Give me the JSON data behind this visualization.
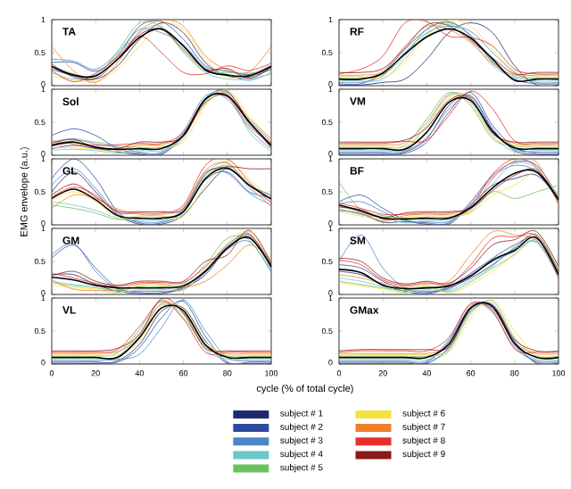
{
  "chart_data": [
    {
      "type": "line",
      "title": "TA",
      "x": [
        0,
        10,
        20,
        30,
        40,
        50,
        60,
        70,
        80,
        90,
        100
      ],
      "xlim": [
        0,
        100
      ],
      "xticks": [
        0,
        20,
        40,
        60,
        80,
        100
      ],
      "ylim": [
        0,
        1
      ],
      "yticks": [
        0,
        0.5,
        1
      ],
      "tick_labels": "y",
      "series": [
        {
          "color": "#1f2a6e",
          "values": [
            0.25,
            0.15,
            0.1,
            0.3,
            0.7,
            0.95,
            0.8,
            0.35,
            0.15,
            0.13,
            0.25
          ]
        },
        {
          "color": "#2e4a9e",
          "values": [
            0.35,
            0.35,
            0.22,
            0.45,
            0.9,
            0.97,
            0.7,
            0.3,
            0.22,
            0.17,
            0.31
          ]
        },
        {
          "color": "#4a86c8",
          "values": [
            0.4,
            0.37,
            0.25,
            0.5,
            0.85,
            0.8,
            0.62,
            0.27,
            0.17,
            0.08,
            0.2
          ]
        },
        {
          "color": "#6cc5c8",
          "values": [
            0.2,
            0.1,
            0.17,
            0.47,
            0.8,
            0.9,
            0.5,
            0.2,
            0.1,
            0.1,
            0.18
          ]
        },
        {
          "color": "#6cc060",
          "values": [
            0.3,
            0.18,
            0.13,
            0.52,
            0.95,
            0.88,
            0.52,
            0.22,
            0.2,
            0.19,
            0.23
          ]
        },
        {
          "color": "#f5e23a",
          "values": [
            0.15,
            0.08,
            0.07,
            0.25,
            0.6,
            0.93,
            0.85,
            0.4,
            0.13,
            0.15,
            0.16
          ]
        },
        {
          "color": "#f07f2a",
          "values": [
            0.6,
            0.22,
            0.05,
            0.35,
            0.82,
            0.99,
            0.9,
            0.45,
            0.24,
            0.21,
            0.6
          ]
        },
        {
          "color": "#e8302a",
          "values": [
            0.23,
            0.06,
            0.19,
            0.43,
            0.75,
            0.5,
            0.2,
            0.18,
            0.3,
            0.23,
            0.34
          ]
        },
        {
          "color": "#8b1a1a",
          "values": [
            0.33,
            0.13,
            0.11,
            0.4,
            0.77,
            0.85,
            0.55,
            0.25,
            0.26,
            0.11,
            0.28
          ]
        },
        {
          "color": "#000000",
          "values": [
            0.29,
            0.16,
            0.15,
            0.4,
            0.73,
            0.86,
            0.6,
            0.24,
            0.16,
            0.15,
            0.29
          ]
        }
      ]
    },
    {
      "type": "line",
      "title": "RF",
      "x": [
        0,
        10,
        20,
        30,
        40,
        50,
        60,
        70,
        80,
        90,
        100
      ],
      "xlim": [
        0,
        100
      ],
      "xticks": [
        0,
        20,
        40,
        60,
        80,
        100
      ],
      "ylim": [
        0,
        1
      ],
      "yticks": [
        0,
        0.5,
        1
      ],
      "tick_labels": "y",
      "series": [
        {
          "color": "#1f2a6e",
          "values": [
            0.01,
            0.01,
            0.05,
            0.1,
            0.4,
            0.8,
            0.95,
            0.8,
            0.3,
            0.01,
            0.01
          ]
        },
        {
          "color": "#2e4a9e",
          "values": [
            0.03,
            0.03,
            0.2,
            0.55,
            0.85,
            0.97,
            0.75,
            0.35,
            0.1,
            0.03,
            0.03
          ]
        },
        {
          "color": "#4a86c8",
          "values": [
            0.05,
            0.05,
            0.15,
            0.5,
            0.8,
            0.9,
            0.82,
            0.5,
            0.2,
            0.05,
            0.05
          ]
        },
        {
          "color": "#6cc5c8",
          "values": [
            0.07,
            0.07,
            0.1,
            0.4,
            0.78,
            0.93,
            0.7,
            0.3,
            0.12,
            0.07,
            0.07
          ]
        },
        {
          "color": "#6cc060",
          "values": [
            0.12,
            0.12,
            0.17,
            0.45,
            0.86,
            0.95,
            0.77,
            0.37,
            0.14,
            0.12,
            0.12
          ]
        },
        {
          "color": "#f5e23a",
          "values": [
            0.14,
            0.14,
            0.12,
            0.35,
            0.75,
            0.99,
            0.9,
            0.55,
            0.22,
            0.14,
            0.14
          ]
        },
        {
          "color": "#f07f2a",
          "values": [
            0.16,
            0.16,
            0.22,
            0.6,
            0.9,
            0.85,
            0.65,
            0.33,
            0.16,
            0.16,
            0.16
          ]
        },
        {
          "color": "#e8302a",
          "values": [
            0.18,
            0.25,
            0.45,
            0.95,
            0.97,
            0.75,
            0.73,
            0.6,
            0.25,
            0.18,
            0.18
          ]
        },
        {
          "color": "#8b1a1a",
          "values": [
            0.2,
            0.2,
            0.26,
            0.57,
            0.92,
            0.91,
            0.68,
            0.42,
            0.18,
            0.2,
            0.2
          ]
        },
        {
          "color": "#000000",
          "values": [
            0.1,
            0.1,
            0.19,
            0.48,
            0.74,
            0.86,
            0.72,
            0.4,
            0.08,
            0.1,
            0.1
          ]
        }
      ]
    },
    {
      "type": "line",
      "title": "Sol",
      "x": [
        0,
        10,
        20,
        30,
        40,
        50,
        60,
        70,
        80,
        90,
        100
      ],
      "xlim": [
        0,
        100
      ],
      "xticks": [
        0,
        20,
        40,
        60,
        80,
        100
      ],
      "ylim": [
        0,
        1
      ],
      "yticks": [
        0,
        0.5,
        1
      ],
      "tick_labels": "y",
      "series": [
        {
          "color": "#1f2a6e",
          "values": [
            0.1,
            0.15,
            0.1,
            0.05,
            0.01,
            0.01,
            0.3,
            0.85,
            0.97,
            0.5,
            0.13
          ]
        },
        {
          "color": "#2e4a9e",
          "values": [
            0.3,
            0.4,
            0.3,
            0.1,
            0.03,
            0.03,
            0.33,
            0.8,
            0.9,
            0.53,
            0.2
          ]
        },
        {
          "color": "#4a86c8",
          "values": [
            0.2,
            0.25,
            0.17,
            0.12,
            0.05,
            0.05,
            0.37,
            0.9,
            0.85,
            0.4,
            0.09
          ]
        },
        {
          "color": "#6cc5c8",
          "values": [
            0.08,
            0.09,
            0.07,
            0.03,
            0.07,
            0.07,
            0.25,
            0.87,
            0.92,
            0.35,
            0.06
          ]
        },
        {
          "color": "#6cc060",
          "values": [
            0.16,
            0.22,
            0.2,
            0.14,
            0.12,
            0.12,
            0.28,
            0.82,
            0.95,
            0.47,
            0.16
          ]
        },
        {
          "color": "#f5e23a",
          "values": [
            0.12,
            0.11,
            0.09,
            0.06,
            0.14,
            0.14,
            0.2,
            0.75,
            0.99,
            0.6,
            0.22
          ]
        },
        {
          "color": "#f07f2a",
          "values": [
            0.22,
            0.17,
            0.13,
            0.08,
            0.16,
            0.16,
            0.31,
            0.78,
            0.94,
            0.56,
            0.25
          ]
        },
        {
          "color": "#e8302a",
          "values": [
            0.14,
            0.19,
            0.15,
            0.16,
            0.18,
            0.18,
            0.35,
            0.86,
            0.88,
            0.44,
            0.18
          ]
        },
        {
          "color": "#8b1a1a",
          "values": [
            0.18,
            0.24,
            0.11,
            0.1,
            0.2,
            0.2,
            0.29,
            0.84,
            0.91,
            0.51,
            0.11
          ]
        },
        {
          "color": "#000000",
          "values": [
            0.15,
            0.2,
            0.12,
            0.09,
            0.1,
            0.1,
            0.3,
            0.85,
            0.9,
            0.5,
            0.15
          ]
        }
      ]
    },
    {
      "type": "line",
      "title": "VM",
      "x": [
        0,
        10,
        20,
        30,
        40,
        50,
        60,
        70,
        80,
        90,
        100
      ],
      "xlim": [
        0,
        100
      ],
      "xticks": [
        0,
        20,
        40,
        60,
        80,
        100
      ],
      "ylim": [
        0,
        1
      ],
      "yticks": [
        0,
        0.5,
        1
      ],
      "tick_labels": "y",
      "series": [
        {
          "color": "#1f2a6e",
          "values": [
            0.01,
            0.01,
            0.01,
            0.05,
            0.25,
            0.75,
            0.9,
            0.4,
            0.07,
            0.01,
            0.01
          ]
        },
        {
          "color": "#2e4a9e",
          "values": [
            0.03,
            0.03,
            0.03,
            0.03,
            0.2,
            0.65,
            0.95,
            0.45,
            0.12,
            0.03,
            0.03
          ]
        },
        {
          "color": "#4a86c8",
          "values": [
            0.05,
            0.05,
            0.05,
            0.07,
            0.27,
            0.7,
            0.88,
            0.38,
            0.09,
            0.05,
            0.05
          ]
        },
        {
          "color": "#6cc5c8",
          "values": [
            0.07,
            0.07,
            0.07,
            0.11,
            0.45,
            0.9,
            0.8,
            0.3,
            0.05,
            0.07,
            0.07
          ]
        },
        {
          "color": "#6cc060",
          "values": [
            0.12,
            0.12,
            0.12,
            0.15,
            0.55,
            0.95,
            0.75,
            0.25,
            0.14,
            0.12,
            0.12
          ]
        },
        {
          "color": "#f5e23a",
          "values": [
            0.14,
            0.14,
            0.14,
            0.13,
            0.4,
            0.87,
            0.78,
            0.28,
            0.16,
            0.14,
            0.14
          ]
        },
        {
          "color": "#f07f2a",
          "values": [
            0.16,
            0.16,
            0.16,
            0.19,
            0.5,
            0.92,
            0.85,
            0.35,
            0.18,
            0.16,
            0.16
          ]
        },
        {
          "color": "#e8302a",
          "values": [
            0.18,
            0.18,
            0.18,
            0.21,
            0.23,
            0.6,
            0.97,
            0.7,
            0.22,
            0.18,
            0.18
          ]
        },
        {
          "color": "#8b1a1a",
          "values": [
            0.2,
            0.2,
            0.2,
            0.23,
            0.42,
            0.83,
            0.86,
            0.33,
            0.2,
            0.2,
            0.2
          ]
        },
        {
          "color": "#000000",
          "values": [
            0.1,
            0.1,
            0.1,
            0.09,
            0.35,
            0.8,
            0.83,
            0.36,
            0.11,
            0.1,
            0.1
          ]
        }
      ]
    },
    {
      "type": "line",
      "title": "GL",
      "ylabel": "EMG envelope (a.u.)",
      "x": [
        0,
        10,
        20,
        30,
        40,
        50,
        60,
        70,
        80,
        90,
        100
      ],
      "xlim": [
        0,
        100
      ],
      "xticks": [
        0,
        20,
        40,
        60,
        80,
        100
      ],
      "ylim": [
        0,
        1
      ],
      "yticks": [
        0,
        0.5,
        1
      ],
      "tick_labels": "y",
      "series": [
        {
          "color": "#1f2a6e",
          "values": [
            0.5,
            0.8,
            0.5,
            0.15,
            0.01,
            0.01,
            0.15,
            0.55,
            0.85,
            0.6,
            0.45
          ]
        },
        {
          "color": "#2e4a9e",
          "values": [
            0.7,
            1.0,
            0.7,
            0.2,
            0.03,
            0.03,
            0.2,
            0.68,
            0.8,
            0.5,
            0.42
          ]
        },
        {
          "color": "#4a86c8",
          "values": [
            0.6,
            0.85,
            0.55,
            0.17,
            0.05,
            0.05,
            0.25,
            0.8,
            0.78,
            0.48,
            0.3
          ]
        },
        {
          "color": "#6cc5c8",
          "values": [
            0.35,
            0.3,
            0.22,
            0.1,
            0.07,
            0.07,
            0.22,
            0.75,
            0.95,
            0.55,
            0.35
          ]
        },
        {
          "color": "#6cc060",
          "values": [
            0.3,
            0.25,
            0.18,
            0.08,
            0.12,
            0.12,
            0.18,
            0.72,
            0.9,
            0.62,
            0.4
          ]
        },
        {
          "color": "#f5e23a",
          "values": [
            0.37,
            0.5,
            0.35,
            0.11,
            0.14,
            0.14,
            0.13,
            0.6,
            0.97,
            0.7,
            0.38
          ]
        },
        {
          "color": "#f07f2a",
          "values": [
            0.25,
            0.45,
            0.4,
            0.24,
            0.16,
            0.16,
            0.27,
            0.82,
            0.93,
            0.58,
            0.28
          ]
        },
        {
          "color": "#e8302a",
          "values": [
            0.42,
            0.57,
            0.45,
            0.19,
            0.18,
            0.18,
            0.3,
            0.9,
            1.0,
            0.65,
            0.33
          ]
        },
        {
          "color": "#8b1a1a",
          "values": [
            0.45,
            0.62,
            0.42,
            0.21,
            0.2,
            0.2,
            0.24,
            0.77,
            0.88,
            0.85,
            0.85
          ]
        },
        {
          "color": "#000000",
          "values": [
            0.4,
            0.54,
            0.38,
            0.14,
            0.1,
            0.1,
            0.2,
            0.7,
            0.86,
            0.6,
            0.39
          ]
        }
      ]
    },
    {
      "type": "line",
      "title": "BF",
      "x": [
        0,
        10,
        20,
        30,
        40,
        50,
        60,
        70,
        80,
        90,
        100
      ],
      "xlim": [
        0,
        100
      ],
      "xticks": [
        0,
        20,
        40,
        60,
        80,
        100
      ],
      "ylim": [
        0,
        1
      ],
      "yticks": [
        0,
        0.5,
        1
      ],
      "tick_labels": "y",
      "series": [
        {
          "color": "#1f2a6e",
          "values": [
            0.22,
            0.17,
            0.04,
            0.05,
            0.01,
            0.01,
            0.3,
            0.6,
            0.7,
            0.75,
            0.4
          ]
        },
        {
          "color": "#2e4a9e",
          "values": [
            0.35,
            0.45,
            0.25,
            0.08,
            0.03,
            0.03,
            0.35,
            0.75,
            0.95,
            0.9,
            0.42
          ]
        },
        {
          "color": "#4a86c8",
          "values": [
            0.32,
            0.35,
            0.2,
            0.06,
            0.05,
            0.05,
            0.32,
            0.72,
            0.9,
            0.8,
            0.35
          ]
        },
        {
          "color": "#6cc5c8",
          "values": [
            0.25,
            0.15,
            0.12,
            0.03,
            0.07,
            0.07,
            0.27,
            0.62,
            0.93,
            0.85,
            0.37
          ]
        },
        {
          "color": "#6cc060",
          "values": [
            0.65,
            0.22,
            0.14,
            0.1,
            0.12,
            0.12,
            0.2,
            0.5,
            0.4,
            0.5,
            0.6
          ]
        },
        {
          "color": "#f5e23a",
          "values": [
            0.2,
            0.13,
            0.08,
            0.12,
            0.14,
            0.14,
            0.18,
            0.45,
            0.6,
            0.78,
            0.45
          ]
        },
        {
          "color": "#f07f2a",
          "values": [
            0.28,
            0.19,
            0.06,
            0.14,
            0.16,
            0.16,
            0.23,
            0.7,
            0.97,
            0.95,
            0.3
          ]
        },
        {
          "color": "#e8302a",
          "values": [
            0.33,
            0.25,
            0.16,
            0.16,
            0.18,
            0.18,
            0.28,
            0.77,
            1.0,
            0.87,
            0.33
          ]
        },
        {
          "color": "#8b1a1a",
          "values": [
            0.27,
            0.23,
            0.11,
            0.18,
            0.2,
            0.2,
            0.25,
            0.52,
            0.75,
            0.83,
            0.39
          ]
        },
        {
          "color": "#000000",
          "values": [
            0.3,
            0.21,
            0.1,
            0.09,
            0.1,
            0.1,
            0.26,
            0.56,
            0.78,
            0.8,
            0.38
          ]
        }
      ]
    },
    {
      "type": "line",
      "title": "GM",
      "x": [
        0,
        10,
        20,
        30,
        40,
        50,
        60,
        70,
        80,
        90,
        100
      ],
      "xlim": [
        0,
        100
      ],
      "xticks": [
        0,
        20,
        40,
        60,
        80,
        100
      ],
      "ylim": [
        0,
        1
      ],
      "yticks": [
        0,
        0.5,
        1
      ],
      "tick_labels": "y",
      "series": [
        {
          "color": "#1f2a6e",
          "values": [
            0.3,
            0.3,
            0.15,
            0.05,
            0.01,
            0.01,
            0.1,
            0.3,
            0.7,
            0.9,
            0.45
          ]
        },
        {
          "color": "#2e4a9e",
          "values": [
            0.55,
            0.75,
            0.4,
            0.1,
            0.03,
            0.03,
            0.12,
            0.37,
            0.72,
            0.85,
            0.42
          ]
        },
        {
          "color": "#4a86c8",
          "values": [
            0.6,
            0.77,
            0.35,
            0.08,
            0.05,
            0.05,
            0.08,
            0.33,
            0.68,
            0.8,
            0.35
          ]
        },
        {
          "color": "#6cc5c8",
          "values": [
            0.2,
            0.15,
            0.12,
            0.03,
            0.07,
            0.07,
            0.14,
            0.35,
            0.76,
            0.87,
            0.38
          ]
        },
        {
          "color": "#6cc060",
          "values": [
            0.18,
            0.13,
            0.1,
            0.06,
            0.12,
            0.12,
            0.16,
            0.45,
            0.85,
            0.82,
            0.33
          ]
        },
        {
          "color": "#f5e23a",
          "values": [
            0.15,
            0.1,
            0.08,
            0.02,
            0.14,
            0.14,
            0.06,
            0.4,
            0.78,
            0.95,
            0.5
          ]
        },
        {
          "color": "#f07f2a",
          "values": [
            0.22,
            0.08,
            0.06,
            0.07,
            0.16,
            0.16,
            0.11,
            0.2,
            0.45,
            0.75,
            0.52
          ]
        },
        {
          "color": "#e8302a",
          "values": [
            0.32,
            0.25,
            0.17,
            0.12,
            0.18,
            0.18,
            0.18,
            0.42,
            0.74,
            0.92,
            0.4
          ]
        },
        {
          "color": "#8b1a1a",
          "values": [
            0.28,
            0.35,
            0.2,
            0.14,
            0.2,
            0.2,
            0.2,
            0.5,
            0.6,
            0.97,
            0.47
          ]
        },
        {
          "color": "#000000",
          "values": [
            0.26,
            0.22,
            0.14,
            0.1,
            0.1,
            0.1,
            0.13,
            0.35,
            0.7,
            0.86,
            0.42
          ]
        }
      ]
    },
    {
      "type": "line",
      "title": "SM",
      "x": [
        0,
        10,
        20,
        30,
        40,
        50,
        60,
        70,
        80,
        90,
        100
      ],
      "xlim": [
        0,
        100
      ],
      "xticks": [
        0,
        20,
        40,
        60,
        80,
        100
      ],
      "ylim": [
        0,
        1
      ],
      "yticks": [
        0,
        0.5,
        1
      ],
      "tick_labels": "y",
      "series": [
        {
          "color": "#1f2a6e",
          "values": [
            0.35,
            0.3,
            0.15,
            0.05,
            0.01,
            0.1,
            0.25,
            0.45,
            0.7,
            0.9,
            0.35
          ]
        },
        {
          "color": "#2e4a9e",
          "values": [
            0.45,
            0.4,
            0.2,
            0.08,
            0.03,
            0.12,
            0.32,
            0.55,
            0.75,
            0.85,
            0.31
          ]
        },
        {
          "color": "#4a86c8",
          "values": [
            0.5,
            0.9,
            0.4,
            0.1,
            0.05,
            0.08,
            0.3,
            0.5,
            0.65,
            0.8,
            0.28
          ]
        },
        {
          "color": "#6cc5c8",
          "values": [
            0.25,
            0.2,
            0.12,
            0.03,
            0.07,
            0.06,
            0.22,
            0.43,
            0.72,
            0.78,
            0.26
          ]
        },
        {
          "color": "#6cc060",
          "values": [
            0.2,
            0.15,
            0.1,
            0.06,
            0.12,
            0.04,
            0.19,
            0.4,
            0.6,
            0.83,
            0.37
          ]
        },
        {
          "color": "#f5e23a",
          "values": [
            0.18,
            0.13,
            0.08,
            0.02,
            0.14,
            0.02,
            0.15,
            0.35,
            0.62,
            0.92,
            0.4
          ]
        },
        {
          "color": "#f07f2a",
          "values": [
            0.3,
            0.25,
            0.17,
            0.12,
            0.16,
            0.2,
            0.6,
            0.95,
            0.9,
            0.82,
            0.33
          ]
        },
        {
          "color": "#e8302a",
          "values": [
            0.52,
            0.45,
            0.22,
            0.14,
            0.18,
            0.15,
            0.45,
            0.85,
            0.87,
            0.88,
            0.24
          ]
        },
        {
          "color": "#8b1a1a",
          "values": [
            0.55,
            0.5,
            0.25,
            0.16,
            0.2,
            0.17,
            0.4,
            0.75,
            0.83,
            0.95,
            0.42
          ]
        },
        {
          "color": "#000000",
          "values": [
            0.38,
            0.33,
            0.14,
            0.09,
            0.1,
            0.13,
            0.28,
            0.52,
            0.67,
            0.86,
            0.3
          ]
        }
      ]
    },
    {
      "type": "line",
      "title": "VL",
      "xlabel": "cycle (% of total cycle)",
      "x": [
        0,
        10,
        20,
        30,
        40,
        50,
        60,
        70,
        80,
        90,
        100
      ],
      "xlim": [
        0,
        100
      ],
      "xticks": [
        0,
        20,
        40,
        60,
        80,
        100
      ],
      "ylim": [
        0,
        1
      ],
      "yticks": [
        0,
        0.5,
        1
      ],
      "series": [
        {
          "color": "#1f2a6e",
          "values": [
            0.01,
            0.01,
            0.01,
            0.05,
            0.3,
            0.8,
            0.85,
            0.35,
            0.01,
            0.01,
            0.01
          ]
        },
        {
          "color": "#2e4a9e",
          "values": [
            0.03,
            0.03,
            0.03,
            0.03,
            0.25,
            0.7,
            0.95,
            0.42,
            0.03,
            0.03,
            0.03
          ]
        },
        {
          "color": "#4a86c8",
          "values": [
            0.05,
            0.05,
            0.05,
            0.07,
            0.15,
            0.55,
            0.97,
            0.5,
            0.1,
            0.05,
            0.05
          ]
        },
        {
          "color": "#6cc5c8",
          "values": [
            0.07,
            0.07,
            0.07,
            0.12,
            0.47,
            0.9,
            0.75,
            0.22,
            0.07,
            0.07,
            0.07
          ]
        },
        {
          "color": "#6cc060",
          "values": [
            0.12,
            0.12,
            0.12,
            0.17,
            0.52,
            0.97,
            0.7,
            0.27,
            0.12,
            0.12,
            0.12
          ]
        },
        {
          "color": "#f5e23a",
          "values": [
            0.14,
            0.14,
            0.14,
            0.14,
            0.35,
            0.87,
            0.83,
            0.33,
            0.14,
            0.14,
            0.14
          ]
        },
        {
          "color": "#f07f2a",
          "values": [
            0.16,
            0.16,
            0.16,
            0.19,
            0.42,
            0.92,
            0.78,
            0.3,
            0.16,
            0.16,
            0.16
          ]
        },
        {
          "color": "#e8302a",
          "values": [
            0.18,
            0.18,
            0.18,
            0.22,
            0.57,
            0.95,
            0.68,
            0.18,
            0.18,
            0.18,
            0.18
          ]
        },
        {
          "color": "#8b1a1a",
          "values": [
            0.2,
            0.2,
            0.2,
            0.24,
            0.45,
            0.99,
            0.77,
            0.24,
            0.2,
            0.2,
            0.2
          ]
        },
        {
          "color": "#000000",
          "values": [
            0.1,
            0.1,
            0.1,
            0.1,
            0.4,
            0.85,
            0.81,
            0.29,
            0.1,
            0.1,
            0.1
          ]
        }
      ]
    },
    {
      "type": "line",
      "title": "GMax",
      "legend": "bottom",
      "x": [
        0,
        10,
        20,
        30,
        40,
        50,
        60,
        70,
        80,
        90,
        100
      ],
      "xlim": [
        0,
        100
      ],
      "xticks": [
        0,
        20,
        40,
        60,
        80,
        100
      ],
      "ylim": [
        0,
        1
      ],
      "yticks": [
        0,
        0.5,
        1
      ],
      "series": [
        {
          "name": "subject # 1",
          "color": "#1f2a6e",
          "values": [
            0.01,
            0.01,
            0.01,
            0.01,
            0.01,
            0.25,
            0.8,
            0.9,
            0.35,
            0.01,
            0.01
          ]
        },
        {
          "name": "subject # 2",
          "color": "#2e4a9e",
          "values": [
            0.03,
            0.03,
            0.03,
            0.03,
            0.03,
            0.34,
            0.86,
            0.84,
            0.3,
            0.03,
            0.03
          ]
        },
        {
          "name": "subject # 3",
          "color": "#4a86c8",
          "values": [
            0.05,
            0.05,
            0.05,
            0.05,
            0.05,
            0.37,
            0.9,
            0.78,
            0.25,
            0.05,
            0.05
          ]
        },
        {
          "name": "subject # 4",
          "color": "#6cc5c8",
          "values": [
            0.07,
            0.07,
            0.07,
            0.07,
            0.07,
            0.2,
            0.83,
            0.86,
            0.28,
            0.07,
            0.07
          ]
        },
        {
          "name": "subject # 5",
          "color": "#6cc060",
          "values": [
            0.12,
            0.12,
            0.12,
            0.12,
            0.12,
            0.22,
            0.76,
            0.95,
            0.4,
            0.12,
            0.12
          ]
        },
        {
          "name": "subject # 6",
          "color": "#f5e23a",
          "values": [
            0.14,
            0.14,
            0.14,
            0.14,
            0.14,
            0.18,
            0.7,
            0.97,
            0.5,
            0.14,
            0.14
          ]
        },
        {
          "name": "subject # 7",
          "color": "#f07f2a",
          "values": [
            0.16,
            0.16,
            0.16,
            0.16,
            0.16,
            0.28,
            0.88,
            0.82,
            0.33,
            0.16,
            0.16
          ]
        },
        {
          "name": "subject # 8",
          "color": "#e8302a",
          "values": [
            0.18,
            0.2,
            0.2,
            0.2,
            0.2,
            0.4,
            0.92,
            0.8,
            0.23,
            0.18,
            0.18
          ]
        },
        {
          "name": "subject # 9",
          "color": "#8b1a1a",
          "values": [
            0.2,
            0.22,
            0.22,
            0.22,
            0.22,
            0.26,
            0.84,
            0.88,
            0.37,
            0.2,
            0.2
          ]
        },
        {
          "color": "#000000",
          "values": [
            0.1,
            0.1,
            0.1,
            0.1,
            0.1,
            0.3,
            0.85,
            0.87,
            0.31,
            0.1,
            0.1
          ]
        }
      ]
    }
  ]
}
